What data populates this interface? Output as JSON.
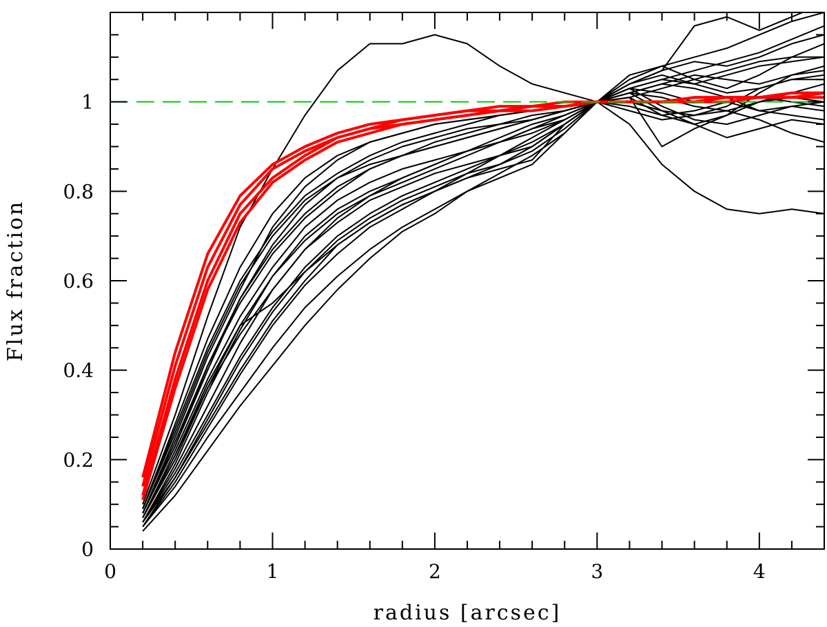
{
  "chart_data": {
    "type": "line",
    "title": "",
    "xlabel": "radius [arcsec]",
    "ylabel": "Flux fraction",
    "xlim": [
      0,
      4.4
    ],
    "ylim": [
      0,
      1.2
    ],
    "grid": false,
    "x_ticks": [
      "0",
      "1",
      "2",
      "3",
      "4"
    ],
    "y_ticks": [
      "0",
      "0.2",
      "0.4",
      "0.6",
      "0.8",
      "1"
    ],
    "colors": {
      "measured": "#000000",
      "model": "#ff0000",
      "reference": "#00cc00"
    },
    "reference_line": {
      "y": 1.0,
      "style": "dashed"
    },
    "x": [
      0.2,
      0.4,
      0.6,
      0.8,
      1.0,
      1.2,
      1.4,
      1.6,
      1.8,
      2.0,
      2.2,
      2.4,
      2.6,
      2.8,
      3.0,
      3.2,
      3.4,
      3.6,
      3.8,
      4.0,
      4.2,
      4.4
    ],
    "model_series": [
      {
        "values": [
          0.16,
          0.44,
          0.66,
          0.79,
          0.86,
          0.9,
          0.93,
          0.95,
          0.96,
          0.97,
          0.98,
          0.99,
          0.99,
          1.0,
          1.0,
          1.0,
          1.0,
          1.0,
          1.0,
          1.01,
          1.01,
          1.01
        ]
      },
      {
        "values": [
          0.14,
          0.41,
          0.63,
          0.77,
          0.85,
          0.89,
          0.92,
          0.94,
          0.96,
          0.97,
          0.98,
          0.98,
          0.99,
          0.99,
          1.0,
          1.0,
          1.0,
          1.0,
          1.01,
          1.01,
          1.01,
          1.02
        ]
      },
      {
        "values": [
          0.12,
          0.38,
          0.6,
          0.75,
          0.83,
          0.88,
          0.92,
          0.94,
          0.95,
          0.96,
          0.97,
          0.98,
          0.99,
          0.99,
          1.0,
          1.0,
          1.0,
          1.01,
          1.01,
          1.01,
          1.02,
          1.02
        ]
      },
      {
        "values": [
          0.11,
          0.36,
          0.58,
          0.73,
          0.82,
          0.87,
          0.91,
          0.93,
          0.95,
          0.96,
          0.97,
          0.98,
          0.98,
          0.99,
          1.0,
          1.0,
          1.0,
          1.01,
          1.01,
          1.01,
          1.02,
          1.02
        ]
      }
    ],
    "measured_series": [
      {
        "values": [
          0.1,
          0.3,
          0.52,
          0.72,
          0.85,
          0.97,
          1.07,
          1.13,
          1.13,
          1.15,
          1.13,
          1.08,
          1.04,
          1.02,
          1.0,
          0.95,
          0.86,
          0.8,
          0.76,
          0.75,
          0.76,
          0.75
        ]
      },
      {
        "values": [
          0.08,
          0.25,
          0.43,
          0.58,
          0.72,
          0.81,
          0.87,
          0.91,
          0.93,
          0.95,
          0.96,
          0.97,
          0.98,
          0.99,
          1.0,
          1.03,
          1.05,
          1.07,
          1.09,
          1.11,
          1.14,
          1.17
        ]
      },
      {
        "values": [
          0.06,
          0.18,
          0.32,
          0.46,
          0.58,
          0.67,
          0.74,
          0.79,
          0.83,
          0.86,
          0.89,
          0.91,
          0.94,
          0.96,
          1.0,
          1.04,
          1.07,
          1.17,
          1.19,
          1.16,
          1.19,
          1.22
        ]
      },
      {
        "values": [
          0.04,
          0.12,
          0.22,
          0.32,
          0.41,
          0.5,
          0.58,
          0.65,
          0.71,
          0.75,
          0.8,
          0.84,
          0.88,
          0.93,
          1.0,
          1.06,
          1.08,
          1.05,
          1.03,
          1.06,
          1.1,
          1.13
        ]
      },
      {
        "values": [
          0.07,
          0.22,
          0.38,
          0.52,
          0.63,
          0.72,
          0.78,
          0.82,
          0.85,
          0.87,
          0.89,
          0.91,
          0.93,
          0.96,
          1.0,
          1.02,
          0.98,
          0.95,
          0.97,
          1.0,
          1.01,
          1.0
        ]
      },
      {
        "values": [
          0.09,
          0.28,
          0.47,
          0.63,
          0.75,
          0.83,
          0.88,
          0.91,
          0.93,
          0.95,
          0.96,
          0.97,
          0.98,
          0.99,
          1.0,
          0.98,
          0.96,
          0.97,
          0.98,
          0.96,
          0.93,
          0.91
        ]
      },
      {
        "values": [
          0.05,
          0.15,
          0.27,
          0.39,
          0.5,
          0.59,
          0.66,
          0.72,
          0.76,
          0.8,
          0.84,
          0.88,
          0.92,
          0.96,
          1.0,
          1.01,
          0.9,
          0.94,
          0.97,
          1.02,
          1.06,
          1.08
        ]
      },
      {
        "values": [
          0.06,
          0.19,
          0.35,
          0.49,
          0.61,
          0.7,
          0.76,
          0.8,
          0.83,
          0.86,
          0.89,
          0.92,
          0.95,
          0.97,
          1.0,
          1.03,
          1.05,
          1.04,
          1.06,
          1.08,
          1.09,
          1.1
        ]
      },
      {
        "values": [
          0.07,
          0.21,
          0.37,
          0.5,
          0.55,
          0.62,
          0.68,
          0.73,
          0.77,
          0.8,
          0.83,
          0.85,
          0.87,
          0.95,
          1.0,
          1.03,
          1.02,
          1.0,
          1.0,
          0.98,
          0.97,
          0.96
        ]
      },
      {
        "values": [
          0.08,
          0.24,
          0.41,
          0.55,
          0.66,
          0.74,
          0.8,
          0.85,
          0.88,
          0.91,
          0.93,
          0.95,
          0.97,
          0.98,
          1.0,
          1.01,
          1.03,
          1.05,
          1.07,
          1.09,
          1.1,
          1.1
        ]
      },
      {
        "values": [
          0.06,
          0.17,
          0.3,
          0.43,
          0.54,
          0.63,
          0.7,
          0.75,
          0.79,
          0.82,
          0.85,
          0.88,
          0.91,
          0.95,
          1.0,
          1.04,
          1.06,
          1.04,
          1.02,
          1.03,
          1.05,
          1.06
        ]
      },
      {
        "values": [
          0.09,
          0.27,
          0.45,
          0.6,
          0.71,
          0.79,
          0.84,
          0.88,
          0.91,
          0.93,
          0.95,
          0.97,
          0.98,
          0.99,
          1.0,
          0.99,
          0.97,
          0.95,
          0.92,
          0.94,
          0.96,
          0.95
        ]
      },
      {
        "values": [
          0.05,
          0.14,
          0.25,
          0.35,
          0.45,
          0.54,
          0.61,
          0.67,
          0.72,
          0.76,
          0.8,
          0.83,
          0.86,
          0.93,
          1.0,
          1.05,
          1.08,
          1.1,
          1.12,
          1.15,
          1.18,
          1.2
        ]
      },
      {
        "values": [
          0.07,
          0.2,
          0.36,
          0.48,
          0.58,
          0.67,
          0.73,
          0.78,
          0.81,
          0.84,
          0.86,
          0.88,
          0.9,
          0.95,
          1.0,
          1.02,
          1.04,
          1.03,
          1.01,
          0.98,
          0.99,
          1.0
        ]
      },
      {
        "values": [
          0.08,
          0.23,
          0.4,
          0.56,
          0.68,
          0.77,
          0.83,
          0.87,
          0.9,
          0.92,
          0.94,
          0.95,
          0.96,
          0.98,
          1.0,
          1.02,
          1.01,
          0.99,
          0.98,
          1.0,
          1.02,
          1.04
        ]
      },
      {
        "values": [
          0.06,
          0.16,
          0.29,
          0.42,
          0.53,
          0.62,
          0.69,
          0.74,
          0.78,
          0.81,
          0.84,
          0.86,
          0.89,
          0.94,
          1.0,
          1.03,
          0.99,
          0.96,
          0.95,
          0.97,
          0.99,
          0.98
        ]
      },
      {
        "values": [
          0.09,
          0.26,
          0.44,
          0.59,
          0.7,
          0.78,
          0.83,
          0.86,
          0.88,
          0.9,
          0.92,
          0.94,
          0.96,
          0.98,
          1.0,
          1.02,
          1.04,
          1.06,
          1.05,
          1.04,
          1.06,
          1.07
        ]
      },
      {
        "values": [
          0.07,
          0.21,
          0.36,
          0.5,
          0.61,
          0.69,
          0.75,
          0.79,
          0.82,
          0.85,
          0.88,
          0.91,
          0.94,
          0.97,
          1.0,
          1.01,
          0.97,
          0.98,
          1.0,
          1.01,
          1.0,
          0.99
        ]
      },
      {
        "values": [
          0.05,
          0.16,
          0.28,
          0.4,
          0.51,
          0.6,
          0.68,
          0.73,
          0.77,
          0.8,
          0.83,
          0.86,
          0.9,
          0.95,
          1.0,
          1.04,
          1.07,
          1.09,
          1.08,
          1.1,
          1.13,
          1.15
        ]
      },
      {
        "values": [
          0.08,
          0.23,
          0.41,
          0.56,
          0.67,
          0.75,
          0.81,
          0.85,
          0.88,
          0.9,
          0.92,
          0.94,
          0.96,
          0.98,
          1.0,
          1.0,
          0.98,
          0.97,
          0.99,
          1.03,
          1.05,
          1.05
        ]
      }
    ]
  }
}
